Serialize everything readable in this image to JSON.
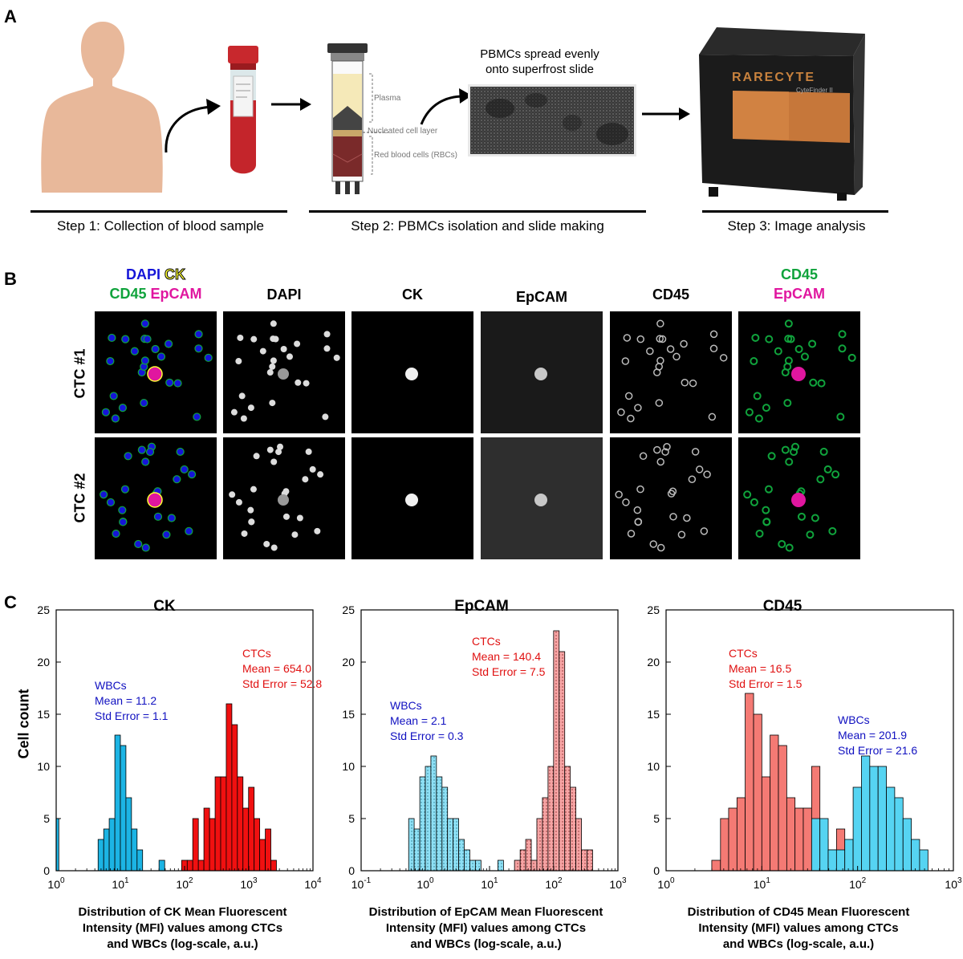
{
  "panel_a": {
    "letter": "A",
    "slide_caption_1": "PBMCs spread evenly",
    "slide_caption_2": "onto superfrost slide",
    "tube_labels": {
      "plasma": "Plasma",
      "nucleated": "Nucleated cell layer",
      "rbc": "Red blood cells (RBCs)"
    },
    "brand": "RARECYTE",
    "model": "CyteFinder II",
    "steps": [
      "Step 1: Collection of blood sample",
      "Step 2: PBMCs isolation and slide making",
      "Step 3: Image analysis"
    ]
  },
  "panel_b": {
    "letter": "B",
    "merge_head": {
      "dapi": "DAPI",
      "ck": "CK",
      "cd45": "CD45",
      "epcam": "EpCAM"
    },
    "columns": [
      "DAPI",
      "CK",
      "EpCAM",
      "CD45"
    ],
    "last_head": {
      "cd45": "CD45",
      "epcam": "EpCAM"
    },
    "rows": [
      "CTC #1",
      "CTC #2"
    ],
    "colors": {
      "dapi": "#1515d8",
      "ck": "#ffff33",
      "cd45": "#10a33c",
      "epcam": "#e0169f"
    }
  },
  "panel_c": {
    "letter": "C",
    "ylabel": "Cell count",
    "captions": [
      [
        "Distribution of CK Mean Fluorescent",
        "Intensity (MFI) values among CTCs",
        "and WBCs (log-scale, a.u.)"
      ],
      [
        "Distribution of EpCAM Mean Fluorescent",
        "Intensity (MFI) values among CTCs",
        "and WBCs (log-scale, a.u.)"
      ],
      [
        "Distribution of CD45 Mean Fluorescent",
        "Intensity (MFI) values among CTCs",
        "and WBCs (log-scale, a.u.)"
      ]
    ]
  },
  "chart_data": [
    {
      "type": "bar",
      "title": "CK",
      "ylabel": "Cell count",
      "xlabel": "",
      "x_scale": "log",
      "xlim": [
        1,
        10000
      ],
      "ylim": [
        0,
        25
      ],
      "yticks": [
        0,
        5,
        10,
        15,
        20,
        25
      ],
      "xtick_labels": [
        [
          "10",
          "0"
        ],
        [
          "10",
          "1"
        ],
        [
          "10",
          "2"
        ],
        [
          "10",
          "3"
        ],
        [
          "10",
          "4"
        ]
      ],
      "annotations": [
        {
          "lines": [
            "WBCs",
            "Mean = 11.2",
            "Std Error = 1.1"
          ],
          "color": "#1010c0"
        },
        {
          "lines": [
            "CTCs",
            "Mean = 654.0",
            "Std Error = 52.8"
          ],
          "color": "#e01010"
        }
      ],
      "series": [
        {
          "color": "#1cb4e4",
          "pattern": "solid",
          "bins": [
            [
              1.0,
              1.1,
              5
            ],
            [
              4.5,
              5.5,
              3
            ],
            [
              5.5,
              6.7,
              4
            ],
            [
              6.7,
              8.2,
              5
            ],
            [
              8.2,
              10.0,
              13
            ],
            [
              10.0,
              12.2,
              12
            ],
            [
              12.2,
              14.9,
              7
            ],
            [
              14.9,
              18.2,
              4
            ],
            [
              18.2,
              22.2,
              2
            ],
            [
              40,
              49,
              1
            ]
          ]
        },
        {
          "color": "#f01010",
          "pattern": "solid",
          "bins": [
            [
              90,
              110,
              1
            ],
            [
              110,
              134,
              1
            ],
            [
              134,
              164,
              5
            ],
            [
              164,
              200,
              1
            ],
            [
              200,
              245,
              6
            ],
            [
              245,
              299,
              5
            ],
            [
              299,
              365,
              9
            ],
            [
              365,
              446,
              9
            ],
            [
              446,
              545,
              16
            ],
            [
              545,
              665,
              14
            ],
            [
              665,
              812,
              9
            ],
            [
              812,
              992,
              6
            ],
            [
              992,
              1212,
              8
            ],
            [
              1212,
              1480,
              5
            ],
            [
              1480,
              1808,
              3
            ],
            [
              1808,
              2208,
              4
            ],
            [
              2208,
              2697,
              1
            ]
          ]
        }
      ]
    },
    {
      "type": "bar",
      "title": "EpCAM",
      "ylabel": "",
      "xlabel": "",
      "x_scale": "log",
      "xlim": [
        0.1,
        1000
      ],
      "ylim": [
        0,
        25
      ],
      "yticks": [
        0,
        5,
        10,
        15,
        20,
        25
      ],
      "xtick_labels": [
        [
          "10",
          "-1"
        ],
        [
          "10",
          "0"
        ],
        [
          "10",
          "1"
        ],
        [
          "10",
          "2"
        ],
        [
          "10",
          "3"
        ]
      ],
      "annotations": [
        {
          "lines": [
            "WBCs",
            "Mean = 2.1",
            "Std Error = 0.3"
          ],
          "color": "#1010c0"
        },
        {
          "lines": [
            "CTCs",
            "Mean = 140.4",
            "Std Error = 7.5"
          ],
          "color": "#e01010"
        }
      ],
      "series": [
        {
          "color": "#8ee0f5",
          "pattern": "dots",
          "bins": [
            [
              0.55,
              0.67,
              5
            ],
            [
              0.67,
              0.82,
              4
            ],
            [
              0.82,
              1.0,
              9
            ],
            [
              1.0,
              1.22,
              10
            ],
            [
              1.22,
              1.49,
              11
            ],
            [
              1.49,
              1.82,
              9
            ],
            [
              1.82,
              2.22,
              8
            ],
            [
              2.22,
              2.71,
              5
            ],
            [
              2.71,
              3.31,
              5
            ],
            [
              3.31,
              4.04,
              3
            ],
            [
              4.04,
              4.93,
              2
            ],
            [
              4.93,
              6.02,
              1
            ],
            [
              6.02,
              7.36,
              1
            ],
            [
              13.5,
              16.5,
              1
            ]
          ]
        },
        {
          "color": "#f6a4a4",
          "pattern": "dots",
          "bins": [
            [
              24.5,
              30,
              1
            ],
            [
              30,
              36.6,
              2
            ],
            [
              36.6,
              44.7,
              3
            ],
            [
              44.7,
              54.6,
              1
            ],
            [
              54.6,
              66.7,
              5
            ],
            [
              66.7,
              81.5,
              7
            ],
            [
              81.5,
              99.5,
              10
            ],
            [
              99.5,
              121.5,
              23
            ],
            [
              121.5,
              148.4,
              21
            ],
            [
              148.4,
              181.3,
              10
            ],
            [
              181.3,
              221.4,
              8
            ],
            [
              221.4,
              270.4,
              5
            ],
            [
              270.4,
              330.3,
              2
            ],
            [
              330.3,
              403.4,
              2
            ]
          ]
        }
      ]
    },
    {
      "type": "bar",
      "title": "CD45",
      "ylabel": "",
      "xlabel": "",
      "x_scale": "log",
      "xlim": [
        1,
        1000
      ],
      "ylim": [
        0,
        25
      ],
      "yticks": [
        0,
        5,
        10,
        15,
        20,
        25
      ],
      "xtick_labels": [
        [
          "10",
          "0"
        ],
        [
          "10",
          "1"
        ],
        [
          "10",
          "2"
        ],
        [
          "10",
          "3"
        ]
      ],
      "annotations": [
        {
          "lines": [
            "CTCs",
            "Mean = 16.5",
            "Std Error = 1.5"
          ],
          "color": "#e01010"
        },
        {
          "lines": [
            "WBCs",
            "Mean = 201.9",
            "Std Error = 21.6"
          ],
          "color": "#1010c0"
        }
      ],
      "series": [
        {
          "color": "#f47a74",
          "pattern": "solid",
          "bins": [
            [
              3.0,
              3.7,
              1
            ],
            [
              3.7,
              4.5,
              5
            ],
            [
              4.5,
              5.5,
              6
            ],
            [
              5.5,
              6.7,
              7
            ],
            [
              6.7,
              8.2,
              17
            ],
            [
              8.2,
              10.0,
              15
            ],
            [
              10.0,
              12.2,
              9
            ],
            [
              12.2,
              14.9,
              13
            ],
            [
              14.9,
              18.2,
              12
            ],
            [
              18.2,
              22.2,
              7
            ],
            [
              22.2,
              27.1,
              6
            ],
            [
              27.1,
              33.1,
              6
            ],
            [
              33.1,
              40.4,
              10
            ],
            [
              40.4,
              49.3,
              3
            ],
            [
              49.3,
              60.2,
              2
            ],
            [
              60.2,
              73.5,
              4
            ],
            [
              73.5,
              89.8,
              1
            ],
            [
              89.8,
              109.7,
              1
            ],
            [
              109.7,
              134,
              3
            ],
            [
              134,
              163.6,
              1
            ],
            [
              163.6,
              199.8,
              3
            ],
            [
              199.8,
              244,
              1
            ],
            [
              244,
              298,
              3
            ],
            [
              298,
              364,
              1
            ]
          ]
        },
        {
          "color": "#56d4f2",
          "pattern": "solid",
          "bins": [
            [
              33.1,
              40.4,
              5
            ],
            [
              40.4,
              49.3,
              5
            ],
            [
              49.3,
              60.2,
              2
            ],
            [
              60.2,
              73.5,
              2
            ],
            [
              73.5,
              89.8,
              3
            ],
            [
              89.8,
              109.7,
              8
            ],
            [
              109.7,
              134,
              11
            ],
            [
              134,
              163.6,
              10
            ],
            [
              163.6,
              199.8,
              10
            ],
            [
              199.8,
              244,
              8
            ],
            [
              244,
              298,
              7
            ],
            [
              298,
              364,
              5
            ],
            [
              364,
              444,
              3
            ],
            [
              444,
              543,
              2
            ]
          ]
        }
      ]
    }
  ]
}
